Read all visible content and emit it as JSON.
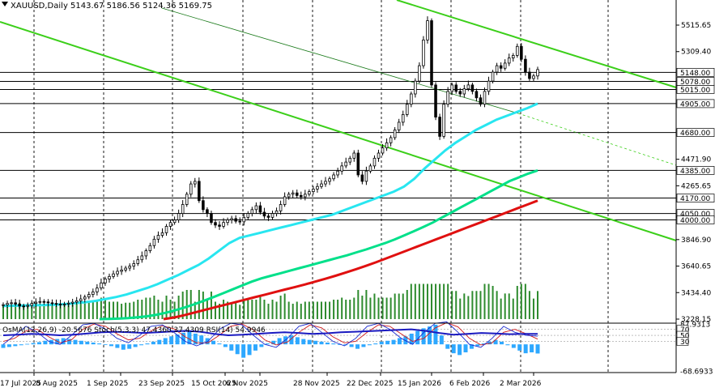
{
  "header": {
    "symbol_line": "XAUUSD,Daily  5143.67 5186.56 5124.36 5169.75"
  },
  "indicator_header": {
    "text": "OsMA(12,26,9) -20.5676  Stoch(5,3,3) 47.4360 37.4309  RSI(14) 54.9946"
  },
  "colors": {
    "background": "#ffffff",
    "grid": "#000000",
    "candle": "#000000",
    "volume": "#2e8b2e",
    "ema_fast": "#28e6f0",
    "ema_mid": "#00e08a",
    "ema_slow": "#e01010",
    "channel": "#3ccf1a",
    "osma_hist": "#2ea8ff",
    "stoch_main": "#1a2ad0",
    "stoch_signal": "#d01a1a",
    "rsi": "#1a1ac0",
    "price_label_bg": "#ffffff"
  },
  "chart_data": [
    {
      "type": "candlestick",
      "title": "XAUUSD,Daily",
      "ohlc_last": {
        "open": 5143.67,
        "high": 5186.56,
        "low": 5124.36,
        "close": 5169.75
      },
      "y_axis_ticks": [
        "5515.65",
        "5309.40",
        "4471.90",
        "4265.65",
        "3846.90",
        "3640.65",
        "3434.40",
        "3228.15"
      ],
      "x_axis_ticks": [
        "17 Jul 2025",
        "8 Aug 2025",
        "1 Sep 2025",
        "23 Sep 2025",
        "15 Oct 2025",
        "6 Nov 2025",
        "28 Nov 2025",
        "22 Dec 2025",
        "15 Jan 2026",
        "6 Feb 2026",
        "2 Mar 2026"
      ],
      "ylim": [
        3228.15,
        5690
      ],
      "level_labels": [
        "5148.00",
        "5078.00",
        "5015.00",
        "4905.00",
        "4680.00",
        "4385.00",
        "4170.00",
        "4050.00",
        "4000.00"
      ],
      "close_series": [
        3340,
        3350,
        3355,
        3345,
        3330,
        3328,
        3335,
        3350,
        3360,
        3365,
        3362,
        3355,
        3350,
        3345,
        3340,
        3345,
        3352,
        3360,
        3370,
        3385,
        3400,
        3420,
        3440,
        3470,
        3510,
        3540,
        3560,
        3580,
        3600,
        3610,
        3625,
        3640,
        3660,
        3690,
        3720,
        3760,
        3800,
        3850,
        3880,
        3900,
        3950,
        3980,
        4000,
        4050,
        4120,
        4200,
        4280,
        4300,
        4150,
        4080,
        4050,
        3980,
        3960,
        3950,
        3980,
        4000,
        4010,
        3990,
        3985,
        4020,
        4050,
        4080,
        4110,
        4060,
        4030,
        4020,
        4050,
        4070,
        4120,
        4180,
        4200,
        4210,
        4190,
        4180,
        4200,
        4220,
        4240,
        4260,
        4280,
        4300,
        4320,
        4350,
        4380,
        4420,
        4450,
        4480,
        4520,
        4350,
        4300,
        4380,
        4420,
        4480,
        4520,
        4560,
        4600,
        4640,
        4700,
        4760,
        4820,
        4900,
        4980,
        5080,
        5200,
        5400,
        5550,
        5050,
        4800,
        4650,
        4900,
        5000,
        5050,
        5000,
        4980,
        5020,
        5050,
        5000,
        4950,
        4900,
        5000,
        5080,
        5150,
        5200,
        5180,
        5220,
        5260,
        5280,
        5350,
        5250,
        5150,
        5100,
        5120,
        5169.75
      ],
      "series": [
        {
          "name": "EMA fast",
          "values": [
            3330,
            3332,
            3334,
            3336,
            3338,
            3340,
            3345,
            3352,
            3360,
            3370,
            3385,
            3400,
            3420,
            3445,
            3470,
            3500,
            3535,
            3570,
            3610,
            3650,
            3700,
            3760,
            3820,
            3860,
            3880,
            3900,
            3920,
            3940,
            3960,
            3980,
            4000,
            4020,
            4040,
            4070,
            4100,
            4130,
            4160,
            4190,
            4220,
            4260,
            4320,
            4400,
            4470,
            4540,
            4600,
            4650,
            4700,
            4740,
            4780,
            4810,
            4840,
            4870,
            4905
          ]
        },
        {
          "name": "EMA mid",
          "values": [
            3228,
            3230,
            3232,
            3236,
            3242,
            3250,
            3262,
            3278,
            3298,
            3320,
            3345,
            3372,
            3400,
            3430,
            3460,
            3490,
            3520,
            3545,
            3565,
            3585,
            3605,
            3625,
            3645,
            3665,
            3685,
            3705,
            3725,
            3748,
            3770,
            3795,
            3820,
            3848,
            3880,
            3912,
            3945,
            3980,
            4020,
            4060,
            4100,
            4140,
            4180,
            4220,
            4260,
            4300,
            4330,
            4360,
            4385
          ]
        },
        {
          "name": "EMA slow",
          "values": [
            3228,
            3240,
            3258,
            3278,
            3298,
            3318,
            3338,
            3358,
            3378,
            3398,
            3418,
            3438,
            3458,
            3478,
            3498,
            3520,
            3542,
            3565,
            3590,
            3615,
            3642,
            3670,
            3700,
            3730,
            3760,
            3790,
            3820,
            3850,
            3880,
            3910,
            3940,
            3970,
            4000,
            4030,
            4060,
            4090,
            4120,
            4150
          ]
        }
      ]
    },
    {
      "type": "line",
      "title": "OsMA(12,26,9) -20.5676  Stoch(5,3,3) 47.4360 37.4309  RSI(14) 54.9946",
      "y_axis_ticks": [
        "87.9313",
        "70",
        "50",
        "30",
        "-68.6933"
      ],
      "osma": [
        -8,
        -6,
        -4,
        -2,
        1,
        3,
        5,
        8,
        10,
        12,
        14,
        12,
        10,
        8,
        6,
        4,
        2,
        0,
        -4,
        -8,
        -12,
        -10,
        -6,
        -2,
        2,
        6,
        10,
        14,
        18,
        22,
        26,
        28,
        24,
        20,
        14,
        8,
        2,
        -6,
        -14,
        -22,
        -30,
        -24,
        -14,
        -6,
        2,
        8,
        14,
        18,
        20,
        16,
        12,
        10,
        8,
        6,
        4,
        2,
        0,
        -2,
        -6,
        -10,
        -6,
        -2,
        2,
        6,
        8,
        10,
        14,
        18,
        24,
        30,
        36,
        40,
        44,
        20,
        -10,
        -20,
        -24,
        -18,
        -10,
        -4,
        2,
        6,
        10,
        6,
        -2,
        -8,
        -14,
        -20,
        -18,
        -20.5676
      ],
      "stoch_main": [
        20,
        50,
        80,
        60,
        30,
        20,
        50,
        85,
        90,
        70,
        40,
        25,
        50,
        80,
        85,
        60,
        30,
        15,
        30,
        70,
        90,
        85,
        50,
        20,
        10,
        40,
        80,
        90,
        60,
        30,
        15,
        40,
        80,
        90,
        70,
        40,
        20,
        60,
        90,
        95,
        60,
        20,
        10,
        40,
        80,
        60,
        50,
        47.436
      ],
      "stoch_signal": [
        30,
        40,
        65,
        70,
        45,
        25,
        35,
        70,
        88,
        80,
        55,
        35,
        40,
        65,
        82,
        72,
        45,
        25,
        25,
        50,
        80,
        88,
        68,
        35,
        18,
        28,
        60,
        85,
        75,
        45,
        25,
        30,
        60,
        85,
        80,
        55,
        30,
        40,
        75,
        92,
        78,
        40,
        18,
        25,
        60,
        70,
        55,
        37.4309
      ],
      "rsi": [
        50,
        52,
        55,
        53,
        50,
        52,
        56,
        60,
        62,
        60,
        58,
        60,
        63,
        65,
        62,
        55,
        50,
        52,
        55,
        58,
        60,
        58,
        55,
        57,
        60,
        62,
        64,
        66,
        68,
        70,
        65,
        58,
        52,
        55,
        58,
        56,
        54,
        55,
        54.9946
      ]
    }
  ]
}
